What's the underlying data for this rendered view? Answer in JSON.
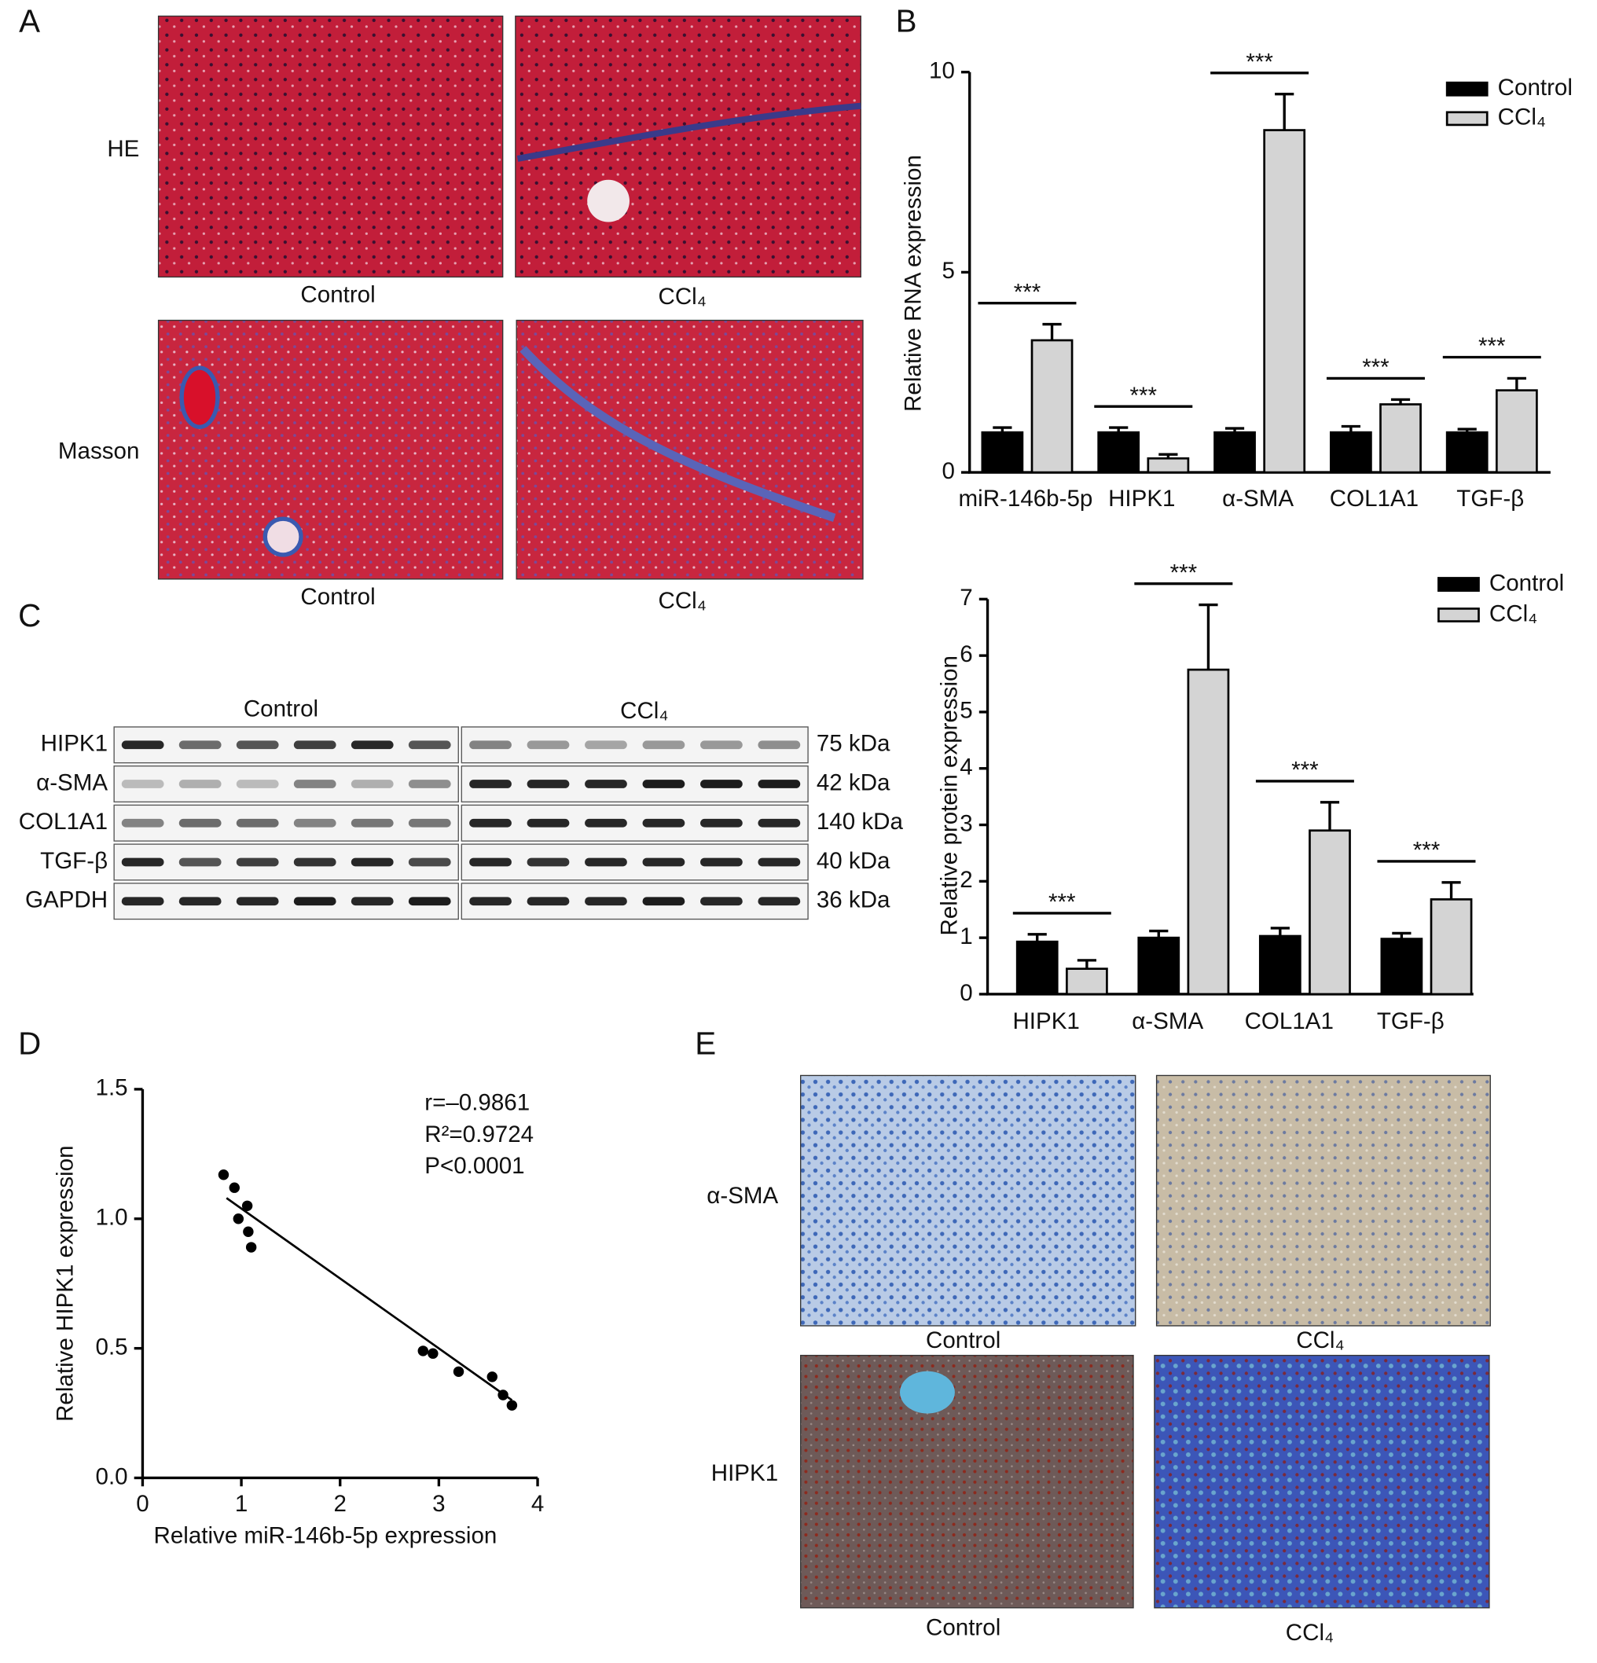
{
  "panel_labels": [
    "A",
    "B",
    "C",
    "D",
    "E"
  ],
  "histology": {
    "rows": [
      "HE",
      "Masson"
    ],
    "captions": [
      [
        "Control",
        "CCl₄"
      ],
      [
        "Control",
        "CCl₄"
      ]
    ]
  },
  "western_blot": {
    "groups": [
      "Control",
      "CCl₄"
    ],
    "rows": [
      "HIPK1",
      "α-SMA",
      "COL1A1",
      "TGF-β",
      "GAPDH"
    ],
    "sizes": [
      "75 kDa",
      "42 kDa",
      "140 kDa",
      "40 kDa",
      "36 kDa"
    ]
  },
  "ihc": {
    "rows": [
      "α-SMA",
      "HIPK1"
    ],
    "captions": [
      [
        "Control",
        "CCl₄"
      ],
      [
        "Control",
        "CCl₄"
      ]
    ]
  },
  "chart_data": [
    {
      "type": "bar",
      "ylabel": "Relative RNA expression",
      "categories": [
        "miR-146b-5p",
        "HIPK1",
        "α-SMA",
        "COL1A1",
        "TGF-β"
      ],
      "series": [
        {
          "name": "Control",
          "color": "#000000",
          "values": [
            1.0,
            1.0,
            1.0,
            1.0,
            1.0
          ],
          "errors": [
            0.12,
            0.12,
            0.1,
            0.15,
            0.08
          ]
        },
        {
          "name": "CCl₄",
          "color": "#d4d4d4",
          "values": [
            3.3,
            0.35,
            8.55,
            1.7,
            2.05
          ],
          "errors": [
            0.4,
            0.1,
            0.9,
            0.12,
            0.3
          ]
        }
      ],
      "significance": [
        "***",
        "***",
        "***",
        "***",
        "***"
      ],
      "ylim": [
        0,
        10
      ],
      "yticks": [
        0,
        5,
        10
      ],
      "legend": "upper right"
    },
    {
      "type": "bar",
      "ylabel": "Relative protein expression",
      "categories": [
        "HIPK1",
        "α-SMA",
        "COL1A1",
        "TGF-β"
      ],
      "series": [
        {
          "name": "Control",
          "color": "#000000",
          "values": [
            0.93,
            1.0,
            1.03,
            0.98
          ],
          "errors": [
            0.13,
            0.12,
            0.14,
            0.1
          ]
        },
        {
          "name": "CCl₄",
          "color": "#d4d4d4",
          "values": [
            0.45,
            5.75,
            2.9,
            1.68
          ],
          "errors": [
            0.15,
            1.15,
            0.5,
            0.3
          ]
        }
      ],
      "significance": [
        "***",
        "***",
        "***",
        "***"
      ],
      "ylim": [
        0,
        7
      ],
      "yticks": [
        0,
        1,
        2,
        3,
        4,
        5,
        6,
        7
      ],
      "legend": "upper right"
    },
    {
      "type": "scatter",
      "xlabel": "Relative miR-146b-5p expression",
      "ylabel": "Relative HIPK1 expression",
      "x": [
        0.82,
        0.93,
        1.06,
        0.97,
        1.07,
        1.1,
        2.84,
        2.94,
        3.2,
        3.54,
        3.65,
        3.74
      ],
      "y": [
        1.17,
        1.12,
        1.05,
        1.0,
        0.95,
        0.89,
        0.49,
        0.48,
        0.41,
        0.39,
        0.32,
        0.28
      ],
      "fit": {
        "x": [
          0.85,
          3.74
        ],
        "y": [
          1.08,
          0.3
        ]
      },
      "annotations": [
        "r=–0.9861",
        "R²=0.9724",
        "P<0.0001"
      ],
      "xlim": [
        0,
        4
      ],
      "xticks": [
        0,
        1,
        2,
        3,
        4
      ],
      "ylim": [
        0,
        1.5
      ],
      "yticks": [
        {
          "value": 0,
          "label": "0.0"
        },
        0.5,
        {
          "value": 1,
          "label": "1.0"
        },
        1.5
      ],
      "color": "#000000"
    }
  ]
}
